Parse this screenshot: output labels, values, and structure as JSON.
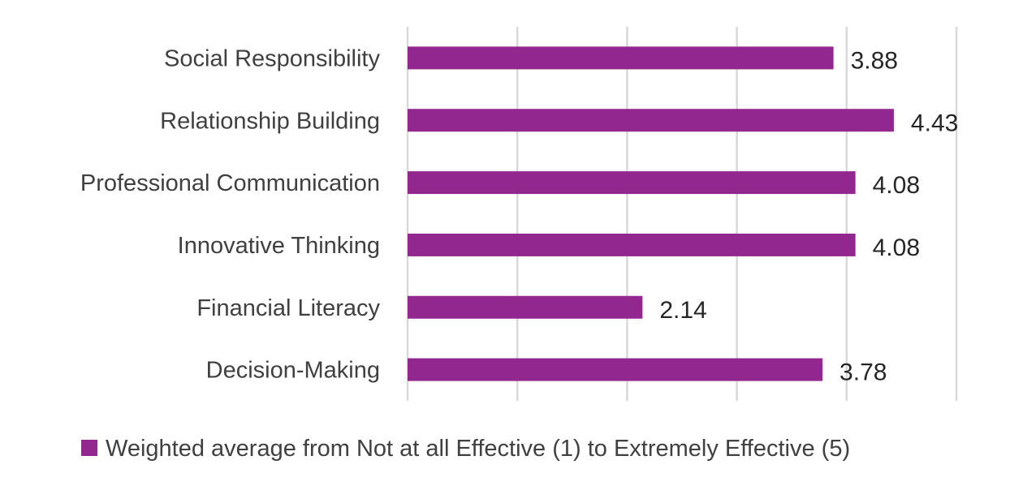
{
  "chart_data": {
    "type": "bar",
    "orientation": "horizontal",
    "title": "",
    "xlabel": "",
    "ylabel": "",
    "categories": [
      "Social Responsibility",
      "Relationship Building",
      "Professional Communication",
      "Innovative Thinking",
      "Financial Literacy",
      "Decision-Making"
    ],
    "series": [
      {
        "name": "Weighted average from Not at all Effective (1) to Extremely Effective (5)",
        "values": [
          3.88,
          4.43,
          4.08,
          4.08,
          2.14,
          3.78
        ],
        "labels": [
          "3.88",
          "4.43",
          "4.08",
          "4.08",
          "2.14",
          "3.78"
        ]
      }
    ],
    "xlim": [
      0,
      5
    ],
    "grid": true,
    "legend_position": "bottom",
    "colors": {
      "bar": "#92278f",
      "grid": "#d9d9d9"
    }
  }
}
